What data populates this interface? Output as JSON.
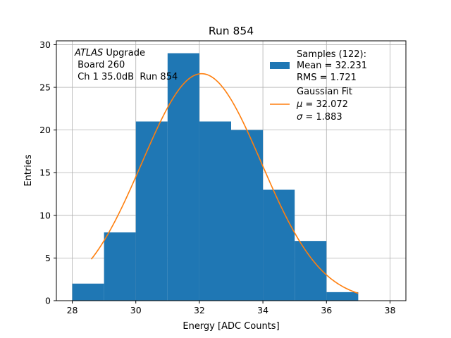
{
  "chart_data": {
    "type": "bar",
    "title": "Run 854",
    "xlabel": "Energy [ADC Counts]",
    "ylabel": "Entries",
    "xlim": [
      27.5,
      38.5
    ],
    "ylim": [
      0,
      30.45
    ],
    "grid": true,
    "xticks": [
      28,
      30,
      32,
      34,
      36,
      38
    ],
    "yticks": [
      0,
      5,
      10,
      15,
      20,
      25,
      30
    ],
    "bins": [
      {
        "x0": 28,
        "x1": 29,
        "count": 2
      },
      {
        "x0": 29,
        "x1": 30,
        "count": 8
      },
      {
        "x0": 30,
        "x1": 31,
        "count": 21
      },
      {
        "x0": 31,
        "x1": 32,
        "count": 29
      },
      {
        "x0": 32,
        "x1": 33,
        "count": 21
      },
      {
        "x0": 33,
        "x1": 34,
        "count": 20
      },
      {
        "x0": 34,
        "x1": 35,
        "count": 13
      },
      {
        "x0": 35,
        "x1": 36,
        "count": 7
      },
      {
        "x0": 36,
        "x1": 37,
        "count": 1
      }
    ],
    "fit": {
      "type": "gaussian",
      "amplitude": 26.6,
      "mu": 32.072,
      "sigma": 1.883,
      "x_start": 28.6,
      "x_end": 37.0
    },
    "colors": {
      "hist": "#1f77b4",
      "fit": "#ff7f0e",
      "grid": "#b0b0b0"
    },
    "annotation": {
      "italic": "ATLAS",
      "rest": " Upgrade",
      "line2": " Board 260",
      "line3": " Ch 1 35.0dB  Run 854"
    },
    "legend": {
      "placement": "top-right",
      "hist_lines": [
        "Samples (122):",
        "Mean = 32.231",
        "RMS = 1.721"
      ],
      "fit_title": "Gaussian Fit",
      "fit_mu_symbol": "μ",
      "fit_mu_value": " = 32.072",
      "fit_sigma_symbol": "σ",
      "fit_sigma_value": " = 1.883"
    }
  }
}
